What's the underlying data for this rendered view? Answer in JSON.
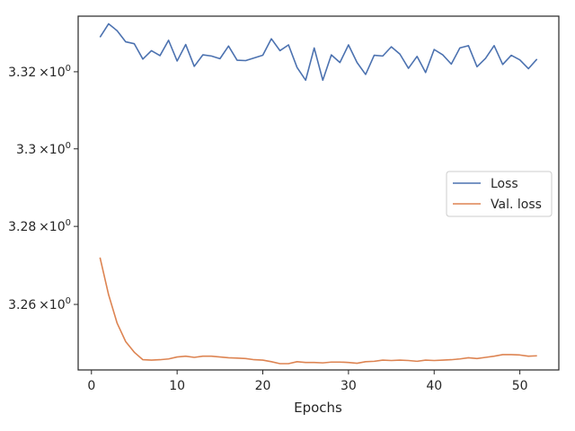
{
  "chart_data": {
    "type": "line",
    "xlabel": "Epochs",
    "ylabel": "",
    "title": "",
    "xlim": [
      -1.55,
      54.55
    ],
    "ylim": [
      3.2433,
      3.3345
    ],
    "yscale": "log",
    "grid": false,
    "legend_position": "center-right",
    "x_ticks": [
      {
        "value": 0,
        "label": "0"
      },
      {
        "value": 10,
        "label": "10"
      },
      {
        "value": 20,
        "label": "20"
      },
      {
        "value": 30,
        "label": "30"
      },
      {
        "value": 40,
        "label": "40"
      },
      {
        "value": 50,
        "label": "50"
      }
    ],
    "y_ticks": [
      {
        "value": 3.26,
        "label": "3.26",
        "exp": "0"
      },
      {
        "value": 3.28,
        "label": "3.28",
        "exp": "0"
      },
      {
        "value": 3.3,
        "label": "3.3",
        "exp": "0"
      },
      {
        "value": 3.32,
        "label": "3.32",
        "exp": "0"
      }
    ],
    "tick_times": "×10",
    "x": [
      1,
      2,
      3,
      4,
      5,
      6,
      7,
      8,
      9,
      10,
      11,
      12,
      13,
      14,
      15,
      16,
      17,
      18,
      19,
      20,
      21,
      22,
      23,
      24,
      25,
      26,
      27,
      28,
      29,
      30,
      31,
      32,
      33,
      34,
      35,
      36,
      37,
      38,
      39,
      40,
      41,
      42,
      43,
      44,
      45,
      46,
      47,
      48,
      49,
      50,
      51,
      52
    ],
    "series": [
      {
        "name": "Loss",
        "color": "#4c72b0",
        "values": [
          3.329,
          3.3325,
          3.3307,
          3.3278,
          3.3273,
          3.3233,
          3.3255,
          3.3242,
          3.3282,
          3.3228,
          3.3271,
          3.3214,
          3.3244,
          3.3241,
          3.3234,
          3.3267,
          3.323,
          3.3229,
          3.3236,
          3.3243,
          3.3286,
          3.3255,
          3.327,
          3.3211,
          3.3178,
          3.3262,
          3.3178,
          3.3244,
          3.3224,
          3.327,
          3.3224,
          3.3193,
          3.3243,
          3.3241,
          3.3265,
          3.3246,
          3.3209,
          3.324,
          3.3198,
          3.3258,
          3.3244,
          3.322,
          3.3262,
          3.3268,
          3.3213,
          3.3235,
          3.3268,
          3.3219,
          3.3243,
          3.3231,
          3.3208,
          3.3233
        ]
      },
      {
        "name": "Val. loss",
        "color": "#dd8452",
        "values": [
          3.272,
          3.2625,
          3.2552,
          3.2505,
          3.2478,
          3.2459,
          3.2458,
          3.2459,
          3.2461,
          3.2466,
          3.2468,
          3.2465,
          3.2468,
          3.2468,
          3.2466,
          3.2464,
          3.2463,
          3.2462,
          3.2459,
          3.2458,
          3.2454,
          3.2449,
          3.2449,
          3.2454,
          3.2452,
          3.2452,
          3.2451,
          3.2453,
          3.2453,
          3.2452,
          3.245,
          3.2454,
          3.2455,
          3.2458,
          3.2457,
          3.2458,
          3.2457,
          3.2455,
          3.2458,
          3.2457,
          3.2458,
          3.2459,
          3.2461,
          3.2464,
          3.2462,
          3.2465,
          3.2468,
          3.2472,
          3.2472,
          3.2471,
          3.2468,
          3.2469
        ]
      }
    ]
  }
}
